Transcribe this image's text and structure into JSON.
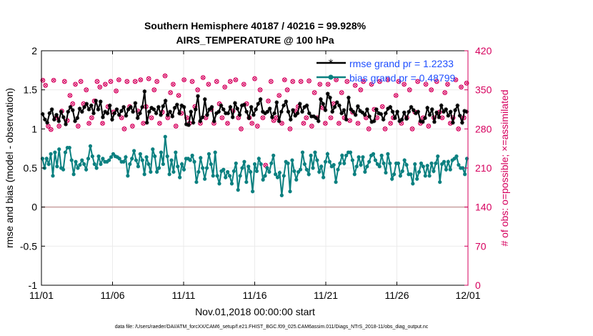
{
  "chart_data": {
    "type": "line",
    "title": "Southern Hemisphere 40187 / 40216 = 99.928%",
    "subtitle": "AIRS_TEMPERATURE @ 100 hPa",
    "xlabel": "Nov.01,2018 00:00:00 start",
    "ylabel": "rmse and bias (model - observation)",
    "ylabel_right": "# of obs: o=possible; ×=assimilated",
    "footnote": "data file: /Users/raeder/DAI/ATM_forcXX/CAM6_setup/f.e21.FHIST_BGC.f09_025.CAM6assim.011/Diags_NTrS_2018-11/obs_diag_output.nc",
    "x_ticks": [
      "11/01",
      "11/06",
      "11/11",
      "11/16",
      "11/21",
      "11/26",
      "12/01"
    ],
    "y_ticks": [
      "-1",
      "-0.5",
      "0",
      "0.5",
      "1",
      "1.5",
      "2"
    ],
    "y_right_ticks": [
      "0",
      "70",
      "140",
      "210",
      "280",
      "350",
      "420"
    ],
    "ylim": [
      -1,
      2
    ],
    "ylim_right": [
      0,
      420
    ],
    "xlim_days": [
      0,
      30
    ],
    "colors": {
      "rmse": "#000000",
      "bias": "#0a8080",
      "obs": "#d6005e",
      "zero_line": "#c8a0a0"
    },
    "series": [
      {
        "name": "rmse grand pr = 1.2233",
        "values": [
          1.19,
          1.12,
          1.08,
          1.2,
          1.25,
          1.12,
          1.18,
          1.1,
          1.22,
          1.15,
          1.06,
          1.22,
          1.28,
          1.24,
          1.1,
          1.14,
          1.26,
          1.22,
          1.28,
          1.32,
          1.25,
          1.3,
          1.2,
          1.36,
          1.25,
          1.35,
          1.15,
          1.22,
          1.2,
          1.3,
          1.12,
          1.2,
          1.25,
          1.18,
          1.23,
          1.28,
          1.17,
          1.25,
          1.28,
          1.22,
          1.33,
          1.14,
          1.2,
          1.28,
          1.48,
          1.08,
          1.22,
          1.27,
          1.25,
          1.2,
          1.28,
          1.18,
          1.29,
          1.36,
          1.18,
          1.22,
          1.16,
          1.27,
          1.31,
          1.2,
          1.3,
          1.28,
          1.06,
          1.05,
          1.22,
          1.08,
          1.25,
          1.42,
          1.1,
          1.15,
          1.38,
          1.18,
          1.25,
          1.28,
          1.1,
          1.2,
          1.22,
          1.3,
          1.25,
          1.2,
          1.2,
          1.28,
          1.15,
          1.33,
          1.26,
          1.18,
          1.3,
          1.31,
          1.22,
          1.14,
          1.28,
          1.18,
          1.25,
          1.32,
          1.38,
          1.22,
          1.2,
          1.22,
          1.26,
          1.15,
          1.2,
          1.34,
          1.1,
          1.22,
          1.3,
          1.35,
          1.22,
          1.12,
          1.24,
          1.17,
          1.2,
          1.32,
          1.22,
          1.28,
          1.3,
          1.2,
          1.16,
          1.16,
          1.14,
          1.1,
          1.38,
          1.32,
          1.24,
          1.45,
          1.4,
          1.22,
          1.28,
          1.34,
          1.3,
          1.2,
          1.24,
          1.12,
          1.4,
          1.25,
          1.22,
          1.18,
          1.29,
          1.23,
          1.21,
          1.18,
          1.25,
          1.16,
          1.09,
          1.1,
          1.25,
          1.2,
          1.19,
          1.12,
          1.2,
          1.26,
          1.28,
          1.22,
          1.14,
          1.22,
          1.1,
          1.12,
          1.21,
          1.13,
          1.22,
          1.28,
          1.24,
          1.2,
          1.22,
          1.1,
          1.09,
          1.14,
          1.27,
          1.18,
          1.25,
          1.09,
          1.21,
          1.15,
          1.3,
          1.22,
          1.25,
          1.17,
          1.22,
          1.08,
          1.24,
          1.3,
          1.17,
          1.08,
          1.23,
          1.22
        ]
      },
      {
        "name": "bias grand pr = 0.48799",
        "values": [
          0.62,
          0.5,
          0.62,
          0.55,
          0.68,
          0.4,
          0.7,
          0.52,
          0.74,
          0.5,
          0.48,
          0.7,
          0.76,
          0.76,
          0.6,
          0.42,
          0.58,
          0.5,
          0.54,
          0.6,
          0.55,
          0.48,
          0.62,
          0.78,
          0.65,
          0.55,
          0.5,
          0.65,
          0.55,
          0.62,
          0.58,
          0.58,
          0.6,
          0.64,
          0.68,
          0.65,
          0.64,
          0.62,
          0.58,
          0.58,
          0.64,
          0.4,
          0.55,
          0.62,
          0.72,
          0.6,
          0.52,
          0.68,
          0.6,
          0.42,
          0.64,
          0.55,
          0.45,
          0.74,
          0.65,
          0.45,
          0.5,
          0.7,
          0.55,
          0.9,
          0.65,
          0.42,
          0.6,
          0.45,
          0.7,
          0.52,
          0.38,
          0.55,
          0.48,
          0.62,
          0.62,
          0.6,
          0.66,
          0.58,
          0.32,
          0.45,
          0.63,
          0.5,
          0.36,
          0.5,
          0.68,
          0.55,
          0.4,
          0.7,
          0.4,
          0.3,
          0.46,
          0.48,
          0.38,
          0.45,
          0.4,
          0.3,
          0.46,
          0.56,
          0.22,
          0.4,
          0.5,
          0.58,
          0.32,
          0.52,
          0.45,
          0.2,
          0.55,
          0.46,
          0.62,
          0.55,
          0.35,
          0.4,
          0.5,
          0.45,
          0.56,
          0.66,
          0.42,
          0.38,
          0.44,
          0.15,
          0.4,
          0.58,
          0.56,
          0.2,
          0.6,
          0.46,
          0.35,
          0.45,
          0.48,
          0.7,
          0.55,
          0.48,
          0.42,
          0.66,
          0.5,
          0.7,
          0.6,
          0.45,
          0.52,
          0.38,
          0.58,
          0.68,
          0.58,
          0.52,
          0.54,
          0.32,
          0.48,
          0.56,
          0.66,
          0.56,
          0.66,
          0.7,
          0.7,
          0.6,
          0.42,
          0.52,
          0.64,
          0.54,
          0.64,
          0.45,
          0.52,
          0.58,
          0.66,
          0.68,
          0.6,
          0.55,
          0.52,
          0.66,
          0.56,
          0.44,
          0.68,
          0.56,
          0.36,
          0.42,
          0.56,
          0.56,
          0.4,
          0.46,
          0.6,
          0.54,
          0.42,
          0.42,
          0.3,
          0.55,
          0.36,
          0.45,
          0.56,
          0.52,
          0.4,
          0.53,
          0.4,
          0.56,
          0.46,
          0.56,
          0.65,
          0.32,
          0.55,
          0.58,
          0.48,
          0.58,
          0.48,
          0.6,
          0.62,
          0.65,
          0.54,
          0.5,
          0.5,
          0.42,
          0.62
        ]
      }
    ],
    "obs_counts_right_axis": [
      367,
      358,
      285,
      279,
      367,
      300,
      285,
      312,
      365,
      295,
      340,
      325,
      360,
      285,
      365,
      325,
      350,
      290,
      300,
      330,
      365,
      355,
      290,
      360,
      320,
      365,
      310,
      348,
      368,
      300,
      280,
      365,
      320,
      285,
      365,
      312,
      368,
      290,
      320,
      370,
      300,
      350,
      365,
      290,
      310,
      375,
      300,
      345,
      360,
      285,
      340,
      308,
      368,
      300,
      290,
      365,
      320,
      350,
      290,
      372,
      300,
      360,
      315,
      290,
      365,
      325,
      300,
      355,
      290,
      365,
      312,
      368,
      300,
      280,
      360,
      325,
      300,
      290,
      370,
      285,
      350,
      300,
      215,
      330,
      365,
      295,
      300,
      340,
      290,
      368,
      350,
      280,
      365,
      312,
      320,
      365,
      290,
      300,
      366,
      285,
      345,
      300,
      360,
      318,
      290,
      360,
      300,
      325,
      368,
      290,
      345,
      300,
      365,
      295,
      310,
      358,
      290,
      350,
      365,
      300,
      280,
      360,
      315,
      300,
      365,
      320,
      280,
      368,
      290,
      300,
      340,
      365,
      290,
      360,
      300,
      350,
      280,
      310,
      365,
      290,
      300,
      360,
      285,
      350,
      300,
      365,
      310,
      300,
      345,
      360,
      290,
      300,
      368,
      280,
      355,
      300,
      362
    ]
  }
}
